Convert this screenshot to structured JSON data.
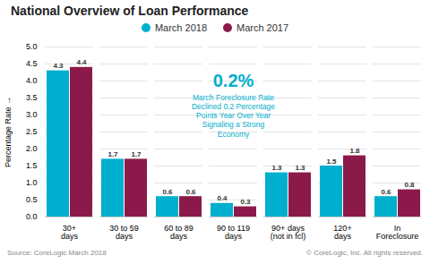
{
  "chart_data": {
    "type": "bar",
    "title": "National Overview of Loan Performance",
    "categories": [
      "30+\ndays",
      "30 to 59\ndays",
      "60 to 89\ndays",
      "90 to 119\ndays",
      "90+ days\n(not in fcl)",
      "120+\ndays",
      "In\nForeclosure"
    ],
    "series": [
      {
        "name": "March 2018",
        "color": "#00AECD",
        "values": [
          4.3,
          1.7,
          0.6,
          0.4,
          1.3,
          1.5,
          0.6
        ]
      },
      {
        "name": "March 2017",
        "color": "#8B1A4A",
        "values": [
          4.4,
          1.7,
          0.6,
          0.3,
          1.3,
          1.8,
          0.8
        ]
      }
    ],
    "ylabel": "Percentage Rate",
    "ylim": [
      0,
      5.0
    ],
    "yticks": [
      {
        "value": 0.0,
        "label": "0.0"
      },
      {
        "value": 0.5,
        "label": "0.5"
      },
      {
        "value": 1.0,
        "label": "1.0"
      },
      {
        "value": 1.5,
        "label": "1.5"
      },
      {
        "value": 2.0,
        "label": "2.0"
      },
      {
        "value": 2.5,
        "label": "2.5"
      },
      {
        "value": 3.0,
        "label": "3.0"
      },
      {
        "value": 3.5,
        "label": "3.5"
      },
      {
        "value": 4.0,
        "label": "4.0"
      },
      {
        "value": 4.5,
        "label": "4.5"
      },
      {
        "value": 5.0,
        "label": "5.0"
      }
    ],
    "grid": true,
    "legend": "top",
    "data_labels": true,
    "annotations": [
      {
        "text": "0.2%",
        "color": "#00AECD"
      },
      {
        "text": "March Foreclosure Rate\nDeclined 0.2 Percentage\nPoints Year Over Year\nSignaling a Strong\nEconomy",
        "color": "#00AECD"
      }
    ],
    "source": "Source: CoreLogic March 2018",
    "copyright": "© CoreLogic, Inc. All rights reserved."
  }
}
